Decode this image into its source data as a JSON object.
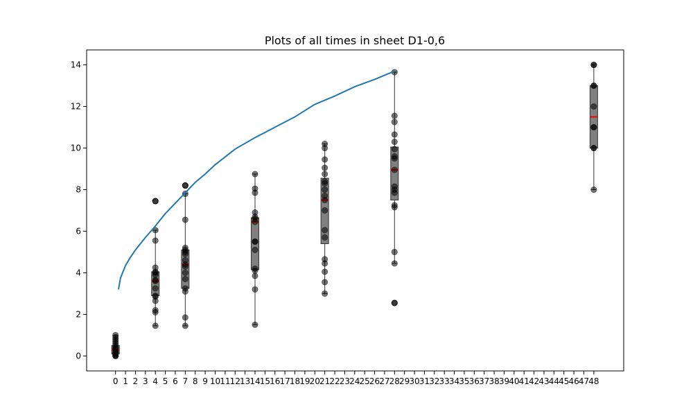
{
  "chart_data": {
    "type": "box",
    "title": "Plots of all times in sheet D1-0,6",
    "xlabel": "",
    "ylabel": "",
    "x_categories": [
      "0",
      "1",
      "2",
      "3",
      "4",
      "5",
      "6",
      "7",
      "8",
      "9",
      "10",
      "11",
      "12",
      "13",
      "14",
      "15",
      "16",
      "17",
      "18",
      "19",
      "20",
      "21",
      "22",
      "23",
      "24",
      "25",
      "26",
      "27",
      "28",
      "29",
      "30",
      "31",
      "32",
      "33",
      "34",
      "35",
      "36",
      "37",
      "38",
      "39",
      "40",
      "41",
      "42",
      "43",
      "44",
      "45",
      "46",
      "47",
      "48"
    ],
    "xlim": [
      -2.9,
      51.0
    ],
    "ylim": [
      -0.72,
      14.72
    ],
    "y_ticks": [
      0,
      2,
      4,
      6,
      8,
      10,
      12,
      14
    ],
    "grid": false,
    "colors": {
      "box_fill": "#808080",
      "median": "#ff0000",
      "points": "#000000",
      "curve": "#1f77b4"
    },
    "boxes": [
      {
        "x": 0,
        "whisker_low": 0.0,
        "q1": 0.1,
        "median": 0.3,
        "q3": 0.5,
        "whisker_high": 1.0,
        "outliers": [],
        "points": [
          0.0,
          0.0,
          0.05,
          0.1,
          0.15,
          0.2,
          0.3,
          0.35,
          0.4,
          0.5,
          0.6,
          0.7,
          0.8,
          0.9,
          1.0
        ]
      },
      {
        "x": 4,
        "whisker_low": 1.45,
        "q1": 2.9,
        "median": 3.6,
        "q3": 4.05,
        "whisker_high": 6.05,
        "outliers": [
          7.45
        ],
        "points": [
          1.45,
          2.1,
          2.2,
          2.65,
          2.85,
          2.9,
          3.25,
          3.6,
          3.65,
          3.9,
          4.0,
          4.05,
          4.25,
          5.55,
          6.05,
          7.45
        ]
      },
      {
        "x": 7,
        "whisker_low": 1.45,
        "q1": 3.25,
        "median": 4.4,
        "q3": 5.1,
        "whisker_high": 7.8,
        "outliers": [
          8.2
        ],
        "points": [
          1.45,
          1.85,
          3.1,
          3.25,
          3.7,
          4.0,
          4.3,
          4.4,
          4.6,
          4.9,
          5.0,
          5.1,
          5.2,
          6.55,
          7.8,
          8.2
        ]
      },
      {
        "x": 14,
        "whisker_low": 1.5,
        "q1": 4.15,
        "median": 6.45,
        "q3": 6.65,
        "whisker_high": 8.75,
        "outliers": [],
        "points": [
          1.5,
          3.2,
          3.85,
          4.1,
          4.2,
          5.1,
          5.5,
          5.5,
          6.45,
          6.6,
          6.7,
          6.9,
          7.85,
          8.05,
          8.75
        ]
      },
      {
        "x": 21,
        "whisker_low": 3.0,
        "q1": 5.4,
        "median": 7.5,
        "q3": 8.55,
        "whisker_high": 10.2,
        "outliers": [],
        "points": [
          3.0,
          3.55,
          4.05,
          4.45,
          4.65,
          5.7,
          6.05,
          7.0,
          7.5,
          7.7,
          8.0,
          8.3,
          8.4,
          8.75,
          9.05,
          9.45,
          10.0,
          10.2
        ]
      },
      {
        "x": 28,
        "whisker_low": 4.45,
        "q1": 7.5,
        "median": 8.95,
        "q3": 10.05,
        "whisker_high": 13.65,
        "outliers": [
          2.55
        ],
        "points": [
          2.55,
          4.45,
          5.0,
          7.15,
          7.25,
          7.85,
          8.0,
          8.15,
          8.95,
          9.5,
          9.6,
          9.95,
          10.3,
          10.65,
          11.25,
          11.55,
          13.65
        ]
      },
      {
        "x": 48,
        "whisker_low": 8.0,
        "q1": 10.0,
        "median": 11.5,
        "q3": 13.0,
        "whisker_high": 14.0,
        "outliers": [],
        "points": [
          8.0,
          10.0,
          10.0,
          11.0,
          11.0,
          12.0,
          13.0,
          13.0,
          14.0,
          14.0
        ]
      }
    ],
    "series": [
      {
        "type": "line",
        "x": [
          0.3,
          0.5,
          1,
          1.5,
          2,
          3,
          4,
          5,
          6,
          7,
          8,
          9,
          10,
          12,
          14,
          16,
          18,
          20,
          22,
          24,
          26,
          28
        ],
        "y": [
          3.2,
          3.75,
          4.35,
          4.75,
          5.1,
          5.7,
          6.25,
          6.85,
          7.35,
          7.85,
          8.35,
          8.75,
          9.2,
          9.95,
          10.5,
          11.0,
          11.5,
          12.1,
          12.5,
          12.95,
          13.3,
          13.7
        ]
      }
    ]
  }
}
